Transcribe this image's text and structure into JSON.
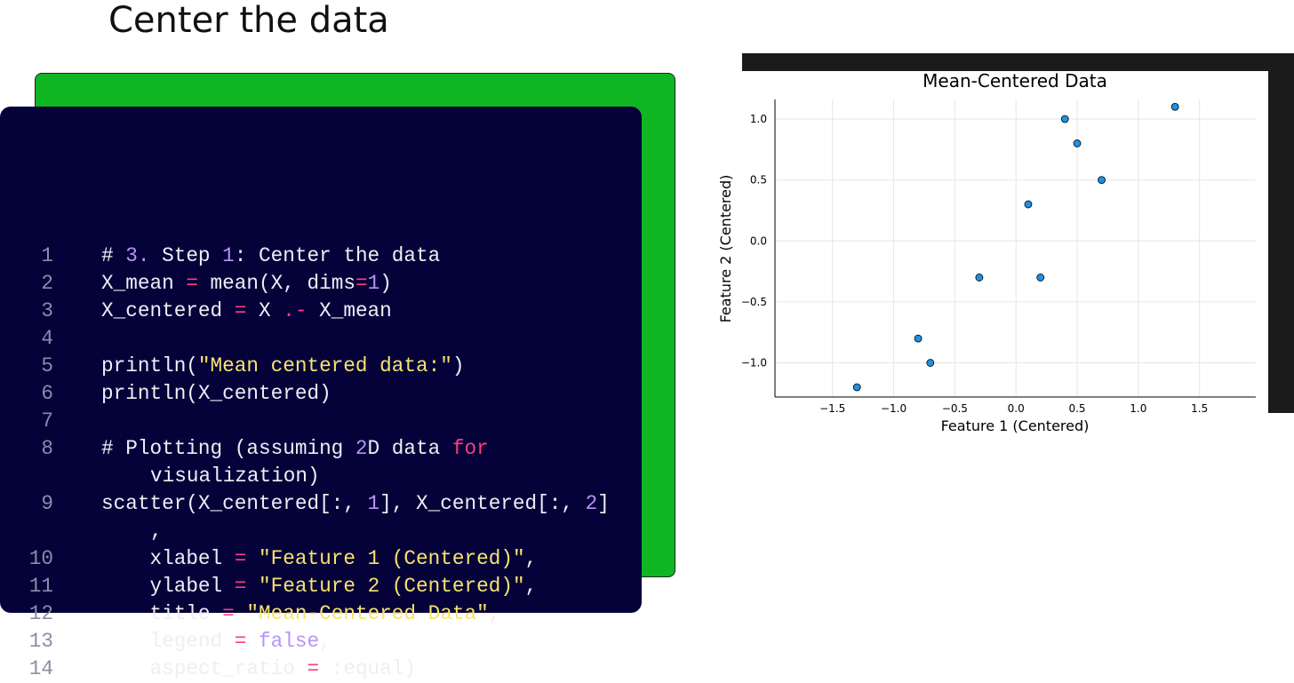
{
  "title": "Center the data",
  "code": {
    "lines": [
      {
        "number": 1,
        "tokens": [
          {
            "text": "# "
          },
          {
            "text": "3.",
            "color": "#b794f6"
          },
          {
            "text": " Step "
          },
          {
            "text": "1",
            "color": "#b794f6"
          },
          {
            "text": ": Center the data"
          }
        ]
      },
      {
        "number": 2,
        "tokens": [
          {
            "text": "X_mean "
          },
          {
            "text": "=",
            "color": "#ff3d7f"
          },
          {
            "text": " mean(X, dims"
          },
          {
            "text": "=",
            "color": "#ff3d7f"
          },
          {
            "text": "1",
            "color": "#b794f6"
          },
          {
            "text": ")"
          }
        ]
      },
      {
        "number": 3,
        "tokens": [
          {
            "text": "X_centered "
          },
          {
            "text": "=",
            "color": "#ff3d7f"
          },
          {
            "text": " X "
          },
          {
            "text": ".-",
            "color": "#ff3d7f"
          },
          {
            "text": " X_mean"
          }
        ]
      },
      {
        "number": 4,
        "tokens": []
      },
      {
        "number": 5,
        "tokens": [
          {
            "text": "println("
          },
          {
            "text": "\"Mean centered data:\"",
            "color": "#f7e36d"
          },
          {
            "text": ")"
          }
        ]
      },
      {
        "number": 6,
        "tokens": [
          {
            "text": "println(X_centered)"
          }
        ]
      },
      {
        "number": 7,
        "tokens": []
      },
      {
        "number": 8,
        "tokens": [
          {
            "text": "# Plotting (assuming "
          },
          {
            "text": "2",
            "color": "#b794f6"
          },
          {
            "text": "D data "
          },
          {
            "text": "for",
            "color": "#ff3d7f"
          },
          {
            "text": " visualization)"
          }
        ]
      },
      {
        "number": 9,
        "tokens": [
          {
            "text": "scatter(X_centered[:, "
          },
          {
            "text": "1",
            "color": "#b794f6"
          },
          {
            "text": "], X_centered[:, "
          },
          {
            "text": "2",
            "color": "#b794f6"
          },
          {
            "text": "]"
          },
          {
            "text": ","
          }
        ]
      },
      {
        "number": 10,
        "tokens": [
          {
            "text": "    xlabel "
          },
          {
            "text": "=",
            "color": "#ff3d7f"
          },
          {
            "text": " "
          },
          {
            "text": "\"Feature 1 (Centered)\"",
            "color": "#f7e36d"
          },
          {
            "text": ","
          }
        ]
      },
      {
        "number": 11,
        "tokens": [
          {
            "text": "    ylabel "
          },
          {
            "text": "=",
            "color": "#ff3d7f"
          },
          {
            "text": " "
          },
          {
            "text": "\"Feature 2 (Centered)\"",
            "color": "#f7e36d"
          },
          {
            "text": ","
          }
        ]
      },
      {
        "number": 12,
        "tokens": [
          {
            "text": "    title "
          },
          {
            "text": "=",
            "color": "#ff3d7f"
          },
          {
            "text": " "
          },
          {
            "text": "\"Mean-Centered Data\"",
            "color": "#f7e36d"
          },
          {
            "text": ","
          }
        ]
      },
      {
        "number": 13,
        "tokens": [
          {
            "text": "    legend "
          },
          {
            "text": "=",
            "color": "#ff3d7f"
          },
          {
            "text": " "
          },
          {
            "text": "false",
            "color": "#b794f6"
          },
          {
            "text": ","
          }
        ]
      },
      {
        "number": 14,
        "tokens": [
          {
            "text": "    aspect_ratio "
          },
          {
            "text": "=",
            "color": "#ff3d7f"
          },
          {
            "text": " :equal)"
          }
        ]
      }
    ]
  },
  "chart_data": {
    "type": "scatter",
    "title": "Mean-Centered Data",
    "x_label": "Feature 1 (Centered)",
    "y_label": "Feature 2 (Centered)",
    "x": [
      -1.3,
      -0.8,
      -0.7,
      -0.3,
      0.1,
      0.2,
      0.4,
      0.5,
      0.7,
      1.3
    ],
    "y": [
      -1.2,
      -0.8,
      -1.0,
      -0.3,
      0.3,
      -0.3,
      1.0,
      0.8,
      0.5,
      1.1
    ],
    "color": "#1e90e6",
    "xlim": [
      -1.97,
      1.96
    ],
    "xticks": [
      {
        "value": -1.5,
        "label": "−1.5"
      },
      {
        "value": -1,
        "label": "−1.0"
      },
      {
        "value": -0.5,
        "label": "−0.5"
      },
      {
        "value": 0,
        "label": "0.0"
      },
      0.5,
      {
        "value": 1,
        "label": "1.0"
      },
      1.5
    ],
    "ylim": [
      -1.28,
      1.16
    ],
    "yticks": [
      {
        "value": -1,
        "label": "−1.0"
      },
      {
        "value": -0.5,
        "label": "−0.5"
      },
      {
        "value": 0,
        "label": "0.0"
      },
      0.5,
      {
        "value": 1,
        "label": "1.0"
      }
    ],
    "grid": true
  }
}
